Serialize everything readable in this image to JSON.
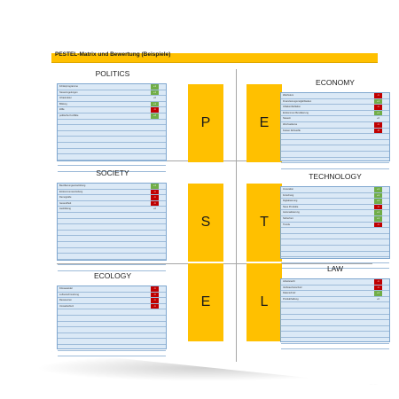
{
  "title": "PESTEL-Matrix und Bewertung (Beispiele)",
  "colors": {
    "accent": "#ffc000",
    "positive": "#70ad47",
    "negative": "#c00000",
    "table_fill": "#dbe9f6"
  },
  "quadrants": {
    "politics": {
      "title": "POLITICS",
      "letter": "P",
      "rows": [
        {
          "label": "Förderprogramme",
          "value": "+1",
          "tone": "pos"
        },
        {
          "label": "Steuerregelungen",
          "value": "+1",
          "tone": "pos"
        },
        {
          "label": "Infrastruktur",
          "value": "+0",
          "tone": "neutral"
        },
        {
          "label": "Bildung",
          "value": "+1",
          "tone": "pos"
        },
        {
          "label": "Zölle",
          "value": "-1",
          "tone": "neg"
        },
        {
          "label": "politische Konflikte",
          "value": "+2",
          "tone": "pos"
        }
      ]
    },
    "economy": {
      "title": "ECONOMY",
      "letter": "E",
      "rows": [
        {
          "label": "Wachstum",
          "value": "-1",
          "tone": "neg"
        },
        {
          "label": "Finanzierungsmöglichkeiten",
          "value": "+1",
          "tone": "pos"
        },
        {
          "label": "Inflation/Deflation",
          "value": "-1",
          "tone": "neg"
        },
        {
          "label": "Einkommen Bevölkerung",
          "value": "+1",
          "tone": "pos"
        },
        {
          "label": "Steuern",
          "value": "+0",
          "tone": "neutral"
        },
        {
          "label": "Wechselkurse",
          "value": "-1",
          "tone": "neg"
        },
        {
          "label": "Kosten Rohstoffe",
          "value": "-0",
          "tone": "neg"
        }
      ]
    },
    "society": {
      "title": "SOCIETY",
      "letter": "S",
      "rows": [
        {
          "label": "Bevölkerungsentwicklung",
          "value": "+1",
          "tone": "pos"
        },
        {
          "label": "Einkommensverteilung",
          "value": "-1",
          "tone": "neg"
        },
        {
          "label": "Demografie",
          "value": "-1",
          "tone": "neg"
        },
        {
          "label": "Gesundheit",
          "value": "-1",
          "tone": "neg"
        },
        {
          "label": "Ausbildung",
          "value": "+0",
          "tone": "neutral"
        }
      ]
    },
    "technology": {
      "title": "TECHNOLOGY",
      "letter": "T",
      "rows": [
        {
          "label": "Innovation",
          "value": "+1",
          "tone": "pos"
        },
        {
          "label": "Forschung",
          "value": "+1",
          "tone": "pos"
        },
        {
          "label": "Digitalisierung",
          "value": "+1",
          "tone": "pos"
        },
        {
          "label": "Neue Produkte",
          "value": "-1",
          "tone": "neg"
        },
        {
          "label": "Automatisierung",
          "value": "+1",
          "tone": "pos"
        },
        {
          "label": "Sicherheit",
          "value": "+1",
          "tone": "pos"
        },
        {
          "label": "Trends",
          "value": "-1",
          "tone": "neg"
        }
      ]
    },
    "ecology": {
      "title": "ECOLOGY",
      "letter": "E",
      "rows": [
        {
          "label": "Klimawandel",
          "value": "-1",
          "tone": "neg"
        },
        {
          "label": "Luftverschmutzung",
          "value": "-1",
          "tone": "neg"
        },
        {
          "label": "Ressourcen",
          "value": "-1",
          "tone": "neg"
        },
        {
          "label": "Umweltschutz",
          "value": "-1",
          "tone": "neg"
        }
      ]
    },
    "law": {
      "title": "LAW",
      "letter": "L",
      "rows": [
        {
          "label": "Arbeitsrecht",
          "value": "-1",
          "tone": "neg"
        },
        {
          "label": "Verbraucherschutz",
          "value": "-1",
          "tone": "neg"
        },
        {
          "label": "Datenschutz",
          "value": "+1",
          "tone": "pos"
        },
        {
          "label": "Produkthaftung",
          "value": "+0",
          "tone": "neutral"
        }
      ]
    }
  }
}
